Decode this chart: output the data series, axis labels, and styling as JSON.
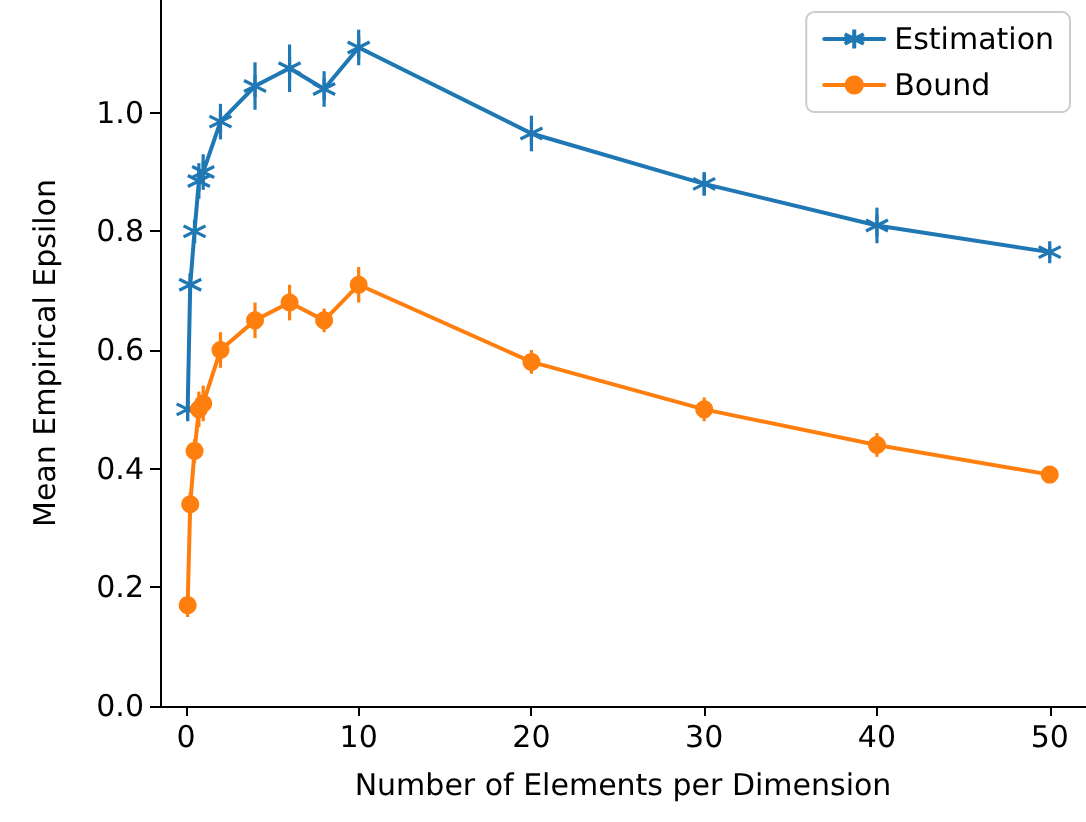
{
  "chart_data": {
    "type": "line",
    "xlabel": "Number of Elements per Dimension",
    "ylabel": "Mean Empirical Epsilon",
    "x": [
      0.1,
      0.25,
      0.5,
      0.75,
      1,
      2,
      4,
      6,
      8,
      10,
      20,
      30,
      40,
      50
    ],
    "series": [
      {
        "name": "Estimation",
        "color": "#1f77b4",
        "marker": "cross",
        "values": [
          0.5,
          0.71,
          0.8,
          0.885,
          0.9,
          0.985,
          1.045,
          1.075,
          1.04,
          1.11,
          0.965,
          0.88,
          0.81,
          0.765
        ],
        "errors": [
          0.02,
          0.02,
          0.02,
          0.03,
          0.03,
          0.03,
          0.04,
          0.04,
          0.03,
          0.03,
          0.03,
          0.02,
          0.03,
          0.01
        ]
      },
      {
        "name": "Bound",
        "color": "#ff7f0e",
        "marker": "circle",
        "values": [
          0.17,
          0.34,
          0.43,
          0.5,
          0.51,
          0.6,
          0.65,
          0.68,
          0.65,
          0.71,
          0.58,
          0.5,
          0.44,
          0.39
        ],
        "errors": [
          0.02,
          0.02,
          0.02,
          0.03,
          0.03,
          0.03,
          0.03,
          0.03,
          0.02,
          0.03,
          0.02,
          0.02,
          0.02,
          0.01
        ]
      }
    ],
    "xlim": [
      -1.5,
      52.1
    ],
    "xticks": [
      0,
      10,
      20,
      30,
      40,
      50
    ],
    "ylim": [
      0,
      1.19
    ],
    "yticks": [
      {
        "value": 0,
        "label": "0.0"
      },
      0.2,
      0.4,
      0.6,
      0.8,
      {
        "value": 1,
        "label": "1.0"
      }
    ],
    "grid": false,
    "legend": "top right",
    "line_style": "solid"
  }
}
